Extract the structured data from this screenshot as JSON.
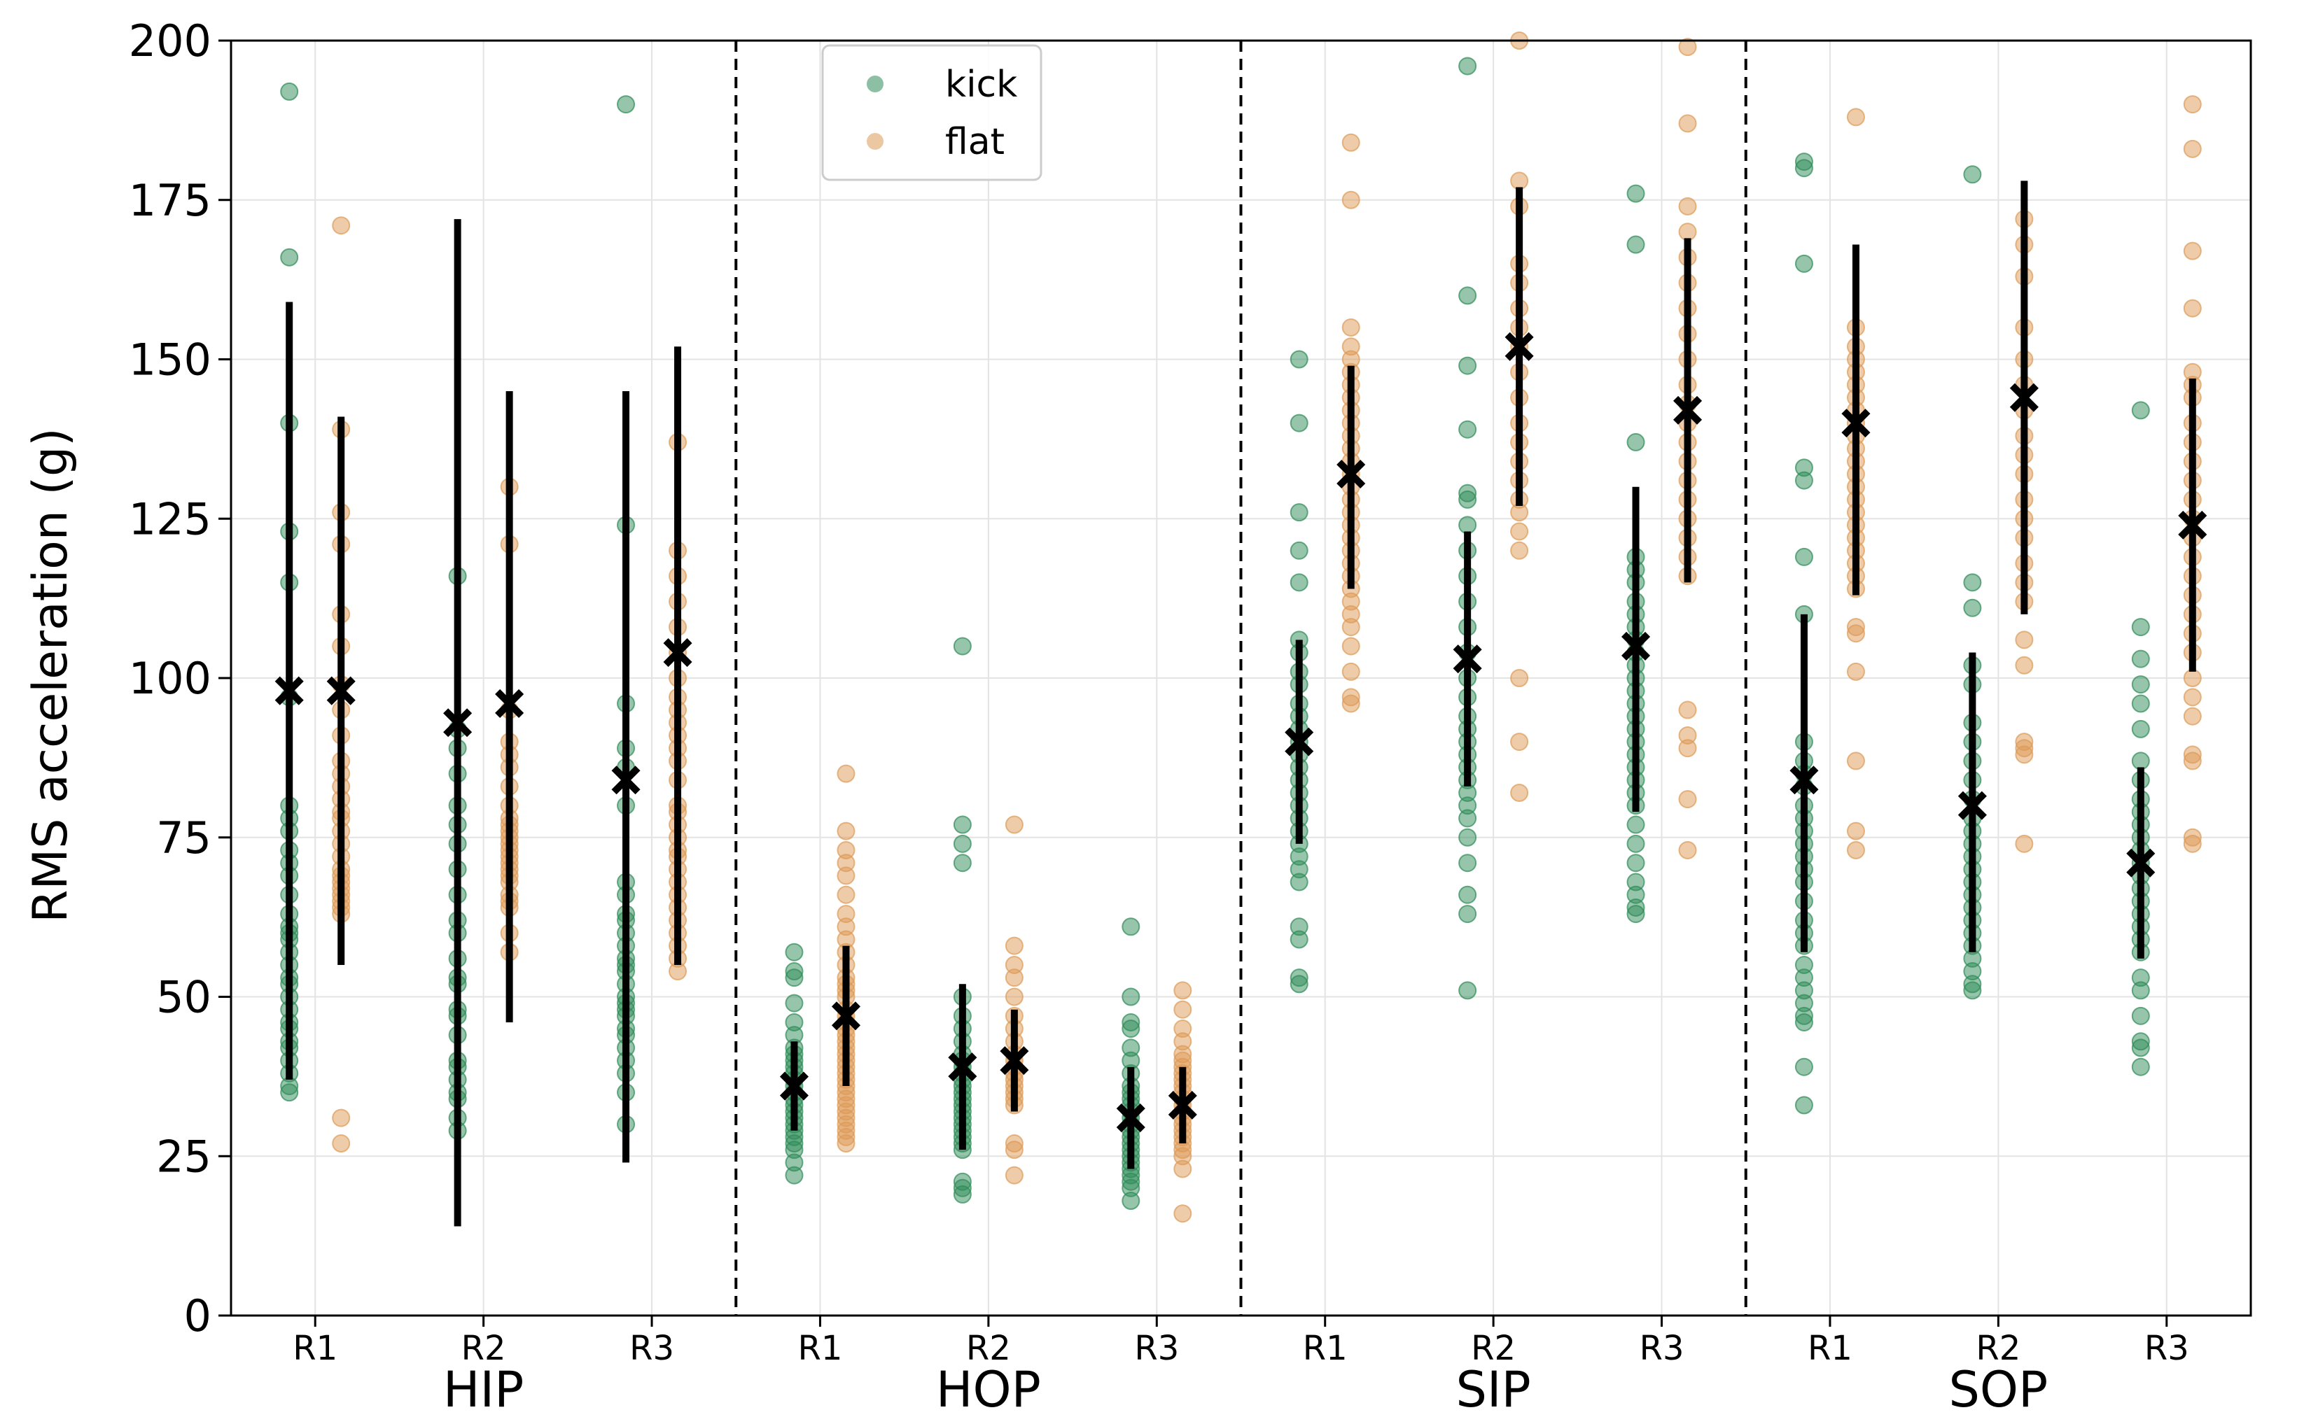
{
  "chart_data": {
    "type": "scatter",
    "ylabel": "RMS acceleration (g)",
    "ylim": [
      0,
      200
    ],
    "yticks": [
      0,
      25,
      50,
      75,
      100,
      125,
      150,
      175,
      200
    ],
    "grid": true,
    "legend_position": "top-left of second panel",
    "colors": {
      "kick": "#2e8b57",
      "flat": "#dd9a55",
      "summary": "#000000"
    },
    "series_names": {
      "kick": "kick",
      "flat": "flat"
    },
    "groups": [
      {
        "name": "HIP",
        "runs": [
          {
            "label": "R1",
            "kick": {
              "mean": 98,
              "lo": 37,
              "hi": 159,
              "points": [
                192,
                166,
                140,
                123,
                115,
                97,
                80,
                78,
                76,
                73,
                71,
                69,
                66,
                63,
                61,
                60,
                59,
                57,
                55,
                53,
                52,
                50,
                48,
                46,
                45,
                43,
                42,
                40,
                38,
                36,
                35
              ]
            },
            "flat": {
              "mean": 98,
              "lo": 55,
              "hi": 141,
              "points": [
                171,
                139,
                126,
                121,
                110,
                105,
                99,
                95,
                91,
                87,
                85,
                83,
                81,
                79,
                78,
                76,
                74,
                72,
                70,
                69,
                68,
                67,
                66,
                65,
                64,
                63,
                31,
                27
              ]
            }
          },
          {
            "label": "R2",
            "kick": {
              "mean": 93,
              "lo": 14,
              "hi": 172,
              "points": [
                116,
                92,
                89,
                85,
                80,
                77,
                74,
                70,
                66,
                62,
                60,
                56,
                53,
                52,
                48,
                47,
                44,
                40,
                39,
                37,
                35,
                34,
                31,
                29
              ]
            },
            "flat": {
              "mean": 96,
              "lo": 46,
              "hi": 145,
              "points": [
                130,
                121,
                95,
                90,
                88,
                86,
                83,
                80,
                78,
                77,
                76,
                75,
                74,
                73,
                72,
                71,
                70,
                69,
                68,
                66,
                65,
                64,
                60,
                57
              ]
            }
          },
          {
            "label": "R3",
            "kick": {
              "mean": 84,
              "lo": 24,
              "hi": 145,
              "points": [
                190,
                124,
                96,
                89,
                86,
                80,
                68,
                66,
                63,
                62,
                60,
                58,
                56,
                55,
                54,
                52,
                50,
                49,
                48,
                47,
                45,
                44,
                42,
                40,
                38,
                35,
                30
              ]
            },
            "flat": {
              "mean": 104,
              "lo": 55,
              "hi": 152,
              "points": [
                137,
                120,
                116,
                112,
                108,
                104,
                100,
                97,
                95,
                93,
                91,
                89,
                87,
                84,
                80,
                79,
                77,
                75,
                73,
                72,
                70,
                68,
                66,
                64,
                62,
                60,
                58,
                56,
                54
              ]
            }
          }
        ]
      },
      {
        "name": "HOP",
        "runs": [
          {
            "label": "R1",
            "kick": {
              "mean": 36,
              "lo": 29,
              "hi": 43,
              "points": [
                57,
                54,
                53,
                49,
                46,
                44,
                42,
                41,
                40,
                39,
                38,
                37,
                36,
                35,
                34,
                33,
                32,
                31,
                30,
                29,
                28,
                27,
                26,
                24,
                22
              ]
            },
            "flat": {
              "mean": 47,
              "lo": 36,
              "hi": 58,
              "points": [
                85,
                76,
                73,
                71,
                69,
                66,
                63,
                61,
                59,
                57,
                55,
                53,
                52,
                51,
                50,
                48,
                47,
                46,
                45,
                44,
                43,
                42,
                41,
                40,
                39,
                38,
                37,
                36,
                35,
                34,
                33,
                32,
                31,
                30,
                29,
                28,
                27
              ]
            }
          },
          {
            "label": "R2",
            "kick": {
              "mean": 39,
              "lo": 26,
              "hi": 52,
              "points": [
                105,
                77,
                74,
                71,
                50,
                47,
                45,
                43,
                41,
                40,
                39,
                38,
                37,
                36,
                35,
                34,
                33,
                32,
                31,
                30,
                29,
                28,
                27,
                26,
                21,
                20,
                19
              ]
            },
            "flat": {
              "mean": 40,
              "lo": 32,
              "hi": 48,
              "points": [
                77,
                58,
                55,
                53,
                50,
                47,
                45,
                43,
                41,
                40,
                39,
                38,
                37,
                36,
                35,
                34,
                33,
                27,
                26,
                22
              ]
            }
          },
          {
            "label": "R3",
            "kick": {
              "mean": 31,
              "lo": 23,
              "hi": 39,
              "points": [
                61,
                50,
                46,
                45,
                42,
                40,
                38,
                36,
                35,
                34,
                33,
                32,
                31,
                30,
                29,
                28,
                27,
                26,
                25,
                24,
                23,
                22,
                21,
                20,
                18
              ]
            },
            "flat": {
              "mean": 33,
              "lo": 27,
              "hi": 39,
              "points": [
                51,
                48,
                45,
                43,
                41,
                40,
                39,
                38,
                37,
                36,
                35,
                34,
                33,
                32,
                31,
                30,
                29,
                28,
                27,
                26,
                25,
                23,
                16
              ]
            }
          }
        ]
      },
      {
        "name": "SIP",
        "runs": [
          {
            "label": "R1",
            "kick": {
              "mean": 90,
              "lo": 74,
              "hi": 106,
              "points": [
                150,
                140,
                126,
                120,
                115,
                106,
                104,
                101,
                99,
                96,
                94,
                92,
                90,
                88,
                86,
                84,
                82,
                80,
                78,
                76,
                74,
                72,
                70,
                68,
                61,
                59,
                53,
                52
              ]
            },
            "flat": {
              "mean": 132,
              "lo": 114,
              "hi": 149,
              "points": [
                184,
                175,
                155,
                152,
                150,
                148,
                146,
                144,
                142,
                140,
                138,
                136,
                134,
                132,
                130,
                128,
                126,
                124,
                122,
                120,
                118,
                116,
                114,
                112,
                110,
                108,
                105,
                101,
                97,
                96
              ]
            }
          },
          {
            "label": "R2",
            "kick": {
              "mean": 103,
              "lo": 83,
              "hi": 123,
              "points": [
                196,
                160,
                149,
                139,
                129,
                128,
                124,
                120,
                116,
                112,
                108,
                104,
                100,
                97,
                94,
                92,
                90,
                88,
                86,
                84,
                82,
                80,
                78,
                75,
                71,
                66,
                63,
                51
              ]
            },
            "flat": {
              "mean": 152,
              "lo": 127,
              "hi": 177,
              "points": [
                200,
                178,
                174,
                165,
                162,
                158,
                155,
                152,
                148,
                144,
                140,
                137,
                134,
                131,
                128,
                126,
                123,
                120,
                100,
                90,
                82
              ]
            }
          },
          {
            "label": "R3",
            "kick": {
              "mean": 105,
              "lo": 79,
              "hi": 130,
              "points": [
                176,
                168,
                137,
                119,
                117,
                115,
                112,
                110,
                108,
                106,
                104,
                102,
                100,
                98,
                96,
                94,
                92,
                90,
                88,
                86,
                84,
                82,
                80,
                77,
                74,
                71,
                68,
                66,
                64,
                63
              ]
            },
            "flat": {
              "mean": 142,
              "lo": 115,
              "hi": 169,
              "points": [
                199,
                187,
                174,
                170,
                166,
                162,
                158,
                154,
                150,
                146,
                143,
                140,
                137,
                134,
                131,
                128,
                125,
                122,
                119,
                116,
                95,
                91,
                89,
                81,
                73
              ]
            }
          }
        ]
      },
      {
        "name": "SOP",
        "runs": [
          {
            "label": "R1",
            "kick": {
              "mean": 84,
              "lo": 57,
              "hi": 110,
              "points": [
                181,
                180,
                165,
                133,
                131,
                119,
                110,
                90,
                87,
                85,
                83,
                80,
                78,
                76,
                74,
                72,
                70,
                68,
                65,
                62,
                60,
                58,
                55,
                53,
                51,
                49,
                47,
                46,
                39,
                33
              ]
            },
            "flat": {
              "mean": 140,
              "lo": 113,
              "hi": 168,
              "points": [
                188,
                155,
                152,
                150,
                148,
                146,
                144,
                142,
                140,
                138,
                136,
                134,
                132,
                130,
                128,
                126,
                124,
                122,
                120,
                118,
                116,
                114,
                108,
                107,
                101,
                87,
                76,
                73
              ]
            }
          },
          {
            "label": "R2",
            "kick": {
              "mean": 80,
              "lo": 57,
              "hi": 104,
              "points": [
                179,
                115,
                111,
                102,
                99,
                93,
                90,
                87,
                84,
                81,
                78,
                76,
                74,
                72,
                70,
                68,
                66,
                64,
                62,
                60,
                58,
                56,
                54,
                52,
                51
              ]
            },
            "flat": {
              "mean": 144,
              "lo": 110,
              "hi": 178,
              "points": [
                172,
                168,
                163,
                155,
                150,
                146,
                142,
                138,
                135,
                132,
                128,
                125,
                122,
                118,
                115,
                112,
                106,
                102,
                90,
                89,
                88,
                74
              ]
            }
          },
          {
            "label": "R3",
            "kick": {
              "mean": 71,
              "lo": 56,
              "hi": 86,
              "points": [
                142,
                108,
                103,
                99,
                96,
                92,
                87,
                84,
                81,
                79,
                77,
                75,
                73,
                71,
                69,
                67,
                65,
                63,
                61,
                59,
                57,
                53,
                51,
                47,
                43,
                42,
                39
              ]
            },
            "flat": {
              "mean": 124,
              "lo": 101,
              "hi": 147,
              "points": [
                190,
                183,
                167,
                158,
                148,
                146,
                144,
                140,
                137,
                134,
                131,
                128,
                125,
                122,
                119,
                116,
                113,
                110,
                107,
                104,
                100,
                97,
                94,
                88,
                87,
                75,
                74
              ]
            }
          }
        ]
      }
    ]
  }
}
